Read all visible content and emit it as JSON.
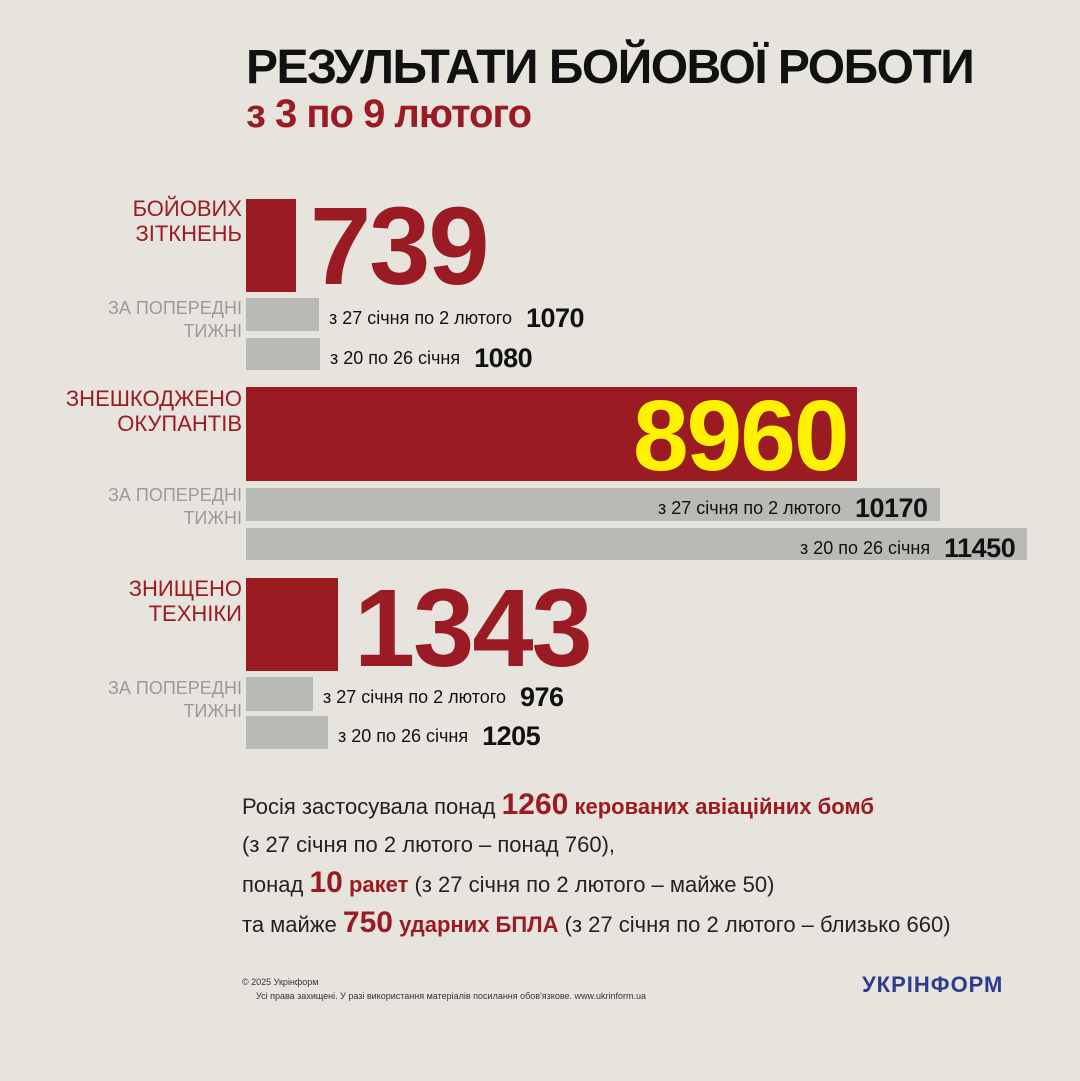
{
  "header": {
    "title": "РЕЗУЛЬТАТИ БОЙОВОЇ РОБОТИ",
    "subtitle": "з 3 по 9 лютого"
  },
  "colors": {
    "background": "#e7e4de",
    "accent_red": "#9b1b22",
    "bar_gray": "#b9b9b5",
    "highlight_yellow": "#fff200",
    "logo_blue": "#2d3b8f"
  },
  "chart_data": {
    "type": "bar",
    "orientation": "horizontal",
    "previous_weeks_label_line1": "ЗА ПОПЕРЕДНІ",
    "previous_weeks_label_line2": "ТИЖНІ",
    "groups": [
      {
        "label_line1": "БОЙОВИХ",
        "label_line2": "ЗІТКНЕНЬ",
        "current": {
          "value": 739,
          "display": "739"
        },
        "previous": [
          {
            "period": "з 27 січня по 2 лютого",
            "value": 1070,
            "display": "1070"
          },
          {
            "period": "з 20  по 26 січня",
            "value": 1080,
            "display": "1080"
          }
        ]
      },
      {
        "label_line1": "ЗНЕШКОДЖЕНО",
        "label_line2": "ОКУПАНТІВ",
        "current": {
          "value": 8960,
          "display": "8960"
        },
        "previous": [
          {
            "period": "з 27 січня по 2 лютого",
            "value": 10170,
            "display": "10170"
          },
          {
            "period": "з 20  по 26 січня",
            "value": 11450,
            "display": "11450"
          }
        ]
      },
      {
        "label_line1": "ЗНИЩЕНО",
        "label_line2": "ТЕХНІКИ",
        "current": {
          "value": 1343,
          "display": "1343"
        },
        "previous": [
          {
            "period": "з 27 січня по 2 лютого",
            "value": 976,
            "display": "976"
          },
          {
            "period": "з 20  по 26 січня",
            "value": 1205,
            "display": "1205"
          }
        ]
      }
    ]
  },
  "summary": {
    "line1_prefix": "Росія застосувала понад ",
    "line1_number": "1260",
    "line1_highlight": " керованих авіаційних бомб",
    "line2": "(з 27 січня по 2 лютого – понад 760),",
    "line3_prefix": "понад ",
    "line3_number": "10",
    "line3_highlight": " ракет",
    "line3_suffix": " (з 27 січня по 2 лютого – майже 50)",
    "line4_prefix": "та майже ",
    "line4_number": "750",
    "line4_highlight": " ударних БПЛА",
    "line4_suffix": " (з 27 січня по 2 лютого – близько 660)"
  },
  "footer": {
    "copyright": "© 2025 Укрінформ",
    "rights": "Усі права захищені. У разі використання матеріалів посилання обов'язкове. www.ukrinform.ua",
    "logo": "УКРІНФОРМ"
  }
}
